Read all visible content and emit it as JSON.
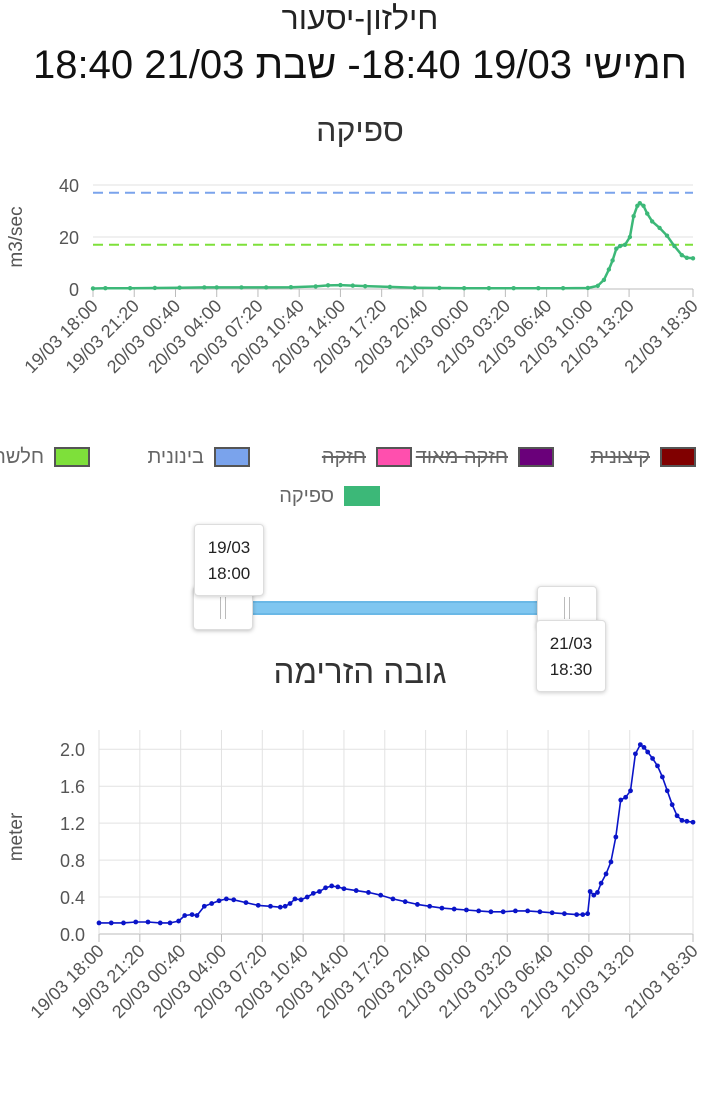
{
  "header": {
    "station": "חילזון-יסעור",
    "range": "חמישי 19/03 18:40- שבת 21/03 18:40"
  },
  "flow_chart_title": "ספיקה",
  "level_chart_title": "גובה הזרימה",
  "legend": [
    {
      "label": "חלשה",
      "color": "#7ee03a",
      "active": true
    },
    {
      "label": "בינונית",
      "color": "#7aa3ec",
      "active": true
    },
    {
      "label": "חזקה",
      "color": "#ff4fae",
      "active": false
    },
    {
      "label": "חזקה מאוד",
      "color": "#6a007a",
      "active": false
    },
    {
      "label": "קיצונית",
      "color": "#800000",
      "active": false
    },
    {
      "label": "ספיקה",
      "color": "#3cb878",
      "active": true
    }
  ],
  "range_slider": {
    "start_date": "19/03",
    "start_time": "18:00",
    "end_date": "21/03",
    "end_time": "18:30"
  },
  "chart_data": [
    {
      "type": "line",
      "title": "ספיקה",
      "ylabel": "m3/sec",
      "ylim": [
        0,
        40
      ],
      "yticks": [
        0,
        20,
        40
      ],
      "xlim": [
        0,
        48.5
      ],
      "x_tick_labels": [
        "19/03 18:00",
        "19/03 21:20",
        "20/03 00:40",
        "20/03 04:00",
        "20/03 07:20",
        "20/03 10:40",
        "20/03 14:00",
        "20/03 17:20",
        "20/03 20:40",
        "21/03 00:00",
        "21/03 03:20",
        "21/03 06:40",
        "21/03 10:00",
        "21/03 13:20",
        "21/03 18:30"
      ],
      "x_tick_positions": [
        0,
        3.333,
        6.667,
        10,
        13.333,
        16.667,
        20,
        23.333,
        26.667,
        30,
        33.333,
        36.667,
        40,
        43.333,
        48.5
      ],
      "grid": true,
      "thresholds": [
        {
          "name": "בינונית",
          "value": 37,
          "color": "#7aa3ec"
        },
        {
          "name": "חלשה",
          "value": 17,
          "color": "#7ee03a"
        }
      ],
      "series": [
        {
          "name": "ספיקה",
          "color": "#3cb878",
          "x": [
            0,
            1,
            3,
            5,
            7,
            9,
            10,
            12,
            14,
            16,
            18,
            19,
            20,
            21,
            22,
            24,
            26,
            28,
            30,
            32,
            34,
            36,
            38,
            40,
            40.8,
            41.3,
            41.7,
            42.0,
            42.3,
            42.6,
            43.0,
            43.4,
            43.7,
            44.0,
            44.2,
            44.5,
            44.8,
            45.2,
            45.8,
            46.4,
            47.0,
            47.6,
            48.0,
            48.5
          ],
          "y": [
            0.2,
            0.3,
            0.3,
            0.4,
            0.5,
            0.6,
            0.6,
            0.6,
            0.6,
            0.7,
            1.0,
            1.4,
            1.5,
            1.3,
            1.1,
            0.8,
            0.5,
            0.4,
            0.3,
            0.3,
            0.3,
            0.3,
            0.3,
            0.4,
            1.2,
            3.5,
            7.5,
            11,
            15.5,
            16.5,
            17,
            20,
            28,
            32,
            33,
            32,
            29,
            26,
            23.5,
            20.5,
            16.5,
            13,
            12,
            11.8
          ]
        }
      ]
    },
    {
      "type": "line",
      "title": "גובה הזרימה",
      "ylabel": "meter",
      "ylim": [
        0,
        2.1
      ],
      "yticks": [
        0,
        0.4,
        0.8,
        1.2,
        1.6,
        2.0
      ],
      "xlim": [
        0,
        48.5
      ],
      "x_tick_labels": [
        "19/03 18:00",
        "19/03 21:20",
        "20/03 00:40",
        "20/03 04:00",
        "20/03 07:20",
        "20/03 10:40",
        "20/03 14:00",
        "20/03 17:20",
        "20/03 20:40",
        "21/03 00:00",
        "21/03 03:20",
        "21/03 06:40",
        "21/03 10:00",
        "21/03 13:20",
        "21/03 18:30"
      ],
      "x_tick_positions": [
        0,
        3.333,
        6.667,
        10,
        13.333,
        16.667,
        20,
        23.333,
        26.667,
        30,
        33.333,
        36.667,
        40,
        43.333,
        48.5
      ],
      "grid": true,
      "series": [
        {
          "name": "גובה הזרימה",
          "color": "#0a14c8",
          "x": [
            0,
            1,
            2,
            3,
            4,
            5,
            5.8,
            6.5,
            7.0,
            7.6,
            8.0,
            8.6,
            9.2,
            9.8,
            10.4,
            11,
            12,
            13,
            14,
            14.8,
            15.2,
            15.6,
            16.0,
            16.5,
            17.0,
            17.5,
            18.0,
            18.5,
            19.0,
            19.5,
            20.0,
            21,
            22,
            23,
            24,
            25,
            26,
            27,
            28,
            29,
            30,
            31,
            32,
            33,
            34,
            35,
            36,
            37,
            38,
            39,
            39.5,
            39.9,
            40.1,
            40.4,
            40.7,
            41.0,
            41.4,
            41.8,
            42.2,
            42.6,
            43.0,
            43.4,
            43.8,
            44.2,
            44.5,
            44.8,
            45.2,
            45.6,
            46.0,
            46.4,
            46.8,
            47.2,
            47.6,
            48.0,
            48.5
          ],
          "y": [
            0.12,
            0.12,
            0.12,
            0.13,
            0.13,
            0.12,
            0.12,
            0.14,
            0.2,
            0.21,
            0.2,
            0.3,
            0.33,
            0.36,
            0.38,
            0.37,
            0.34,
            0.31,
            0.3,
            0.29,
            0.3,
            0.33,
            0.38,
            0.37,
            0.4,
            0.44,
            0.46,
            0.5,
            0.52,
            0.51,
            0.49,
            0.47,
            0.45,
            0.42,
            0.38,
            0.35,
            0.32,
            0.3,
            0.28,
            0.27,
            0.26,
            0.25,
            0.24,
            0.24,
            0.25,
            0.25,
            0.24,
            0.23,
            0.22,
            0.21,
            0.21,
            0.22,
            0.46,
            0.42,
            0.45,
            0.55,
            0.65,
            0.78,
            1.05,
            1.45,
            1.48,
            1.55,
            1.95,
            2.05,
            2.02,
            1.97,
            1.9,
            1.82,
            1.7,
            1.55,
            1.4,
            1.28,
            1.23,
            1.22,
            1.21
          ]
        }
      ]
    }
  ]
}
